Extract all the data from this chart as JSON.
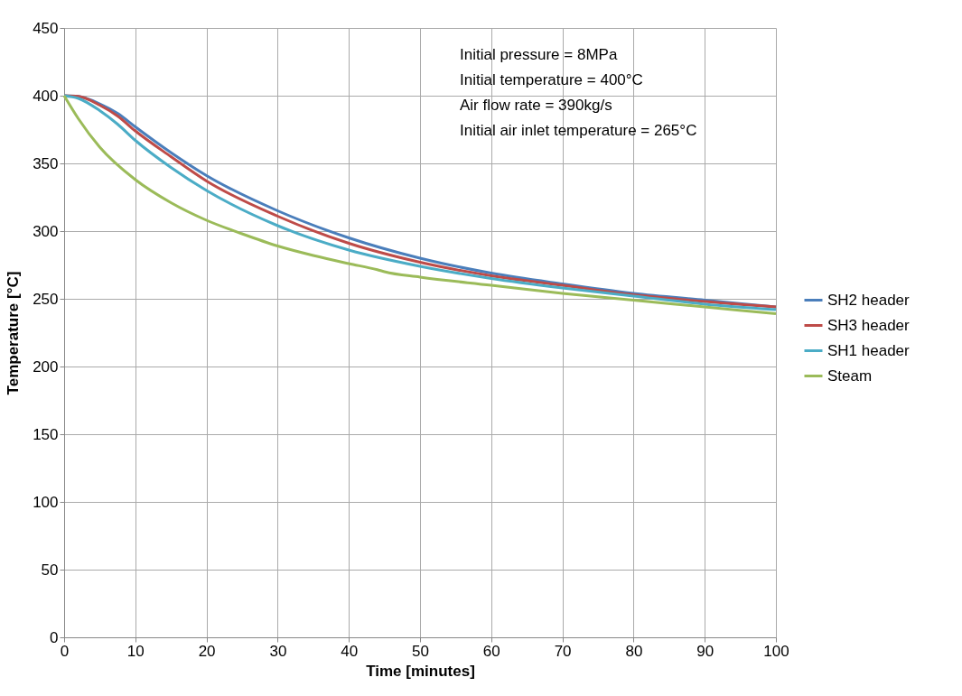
{
  "chart_data": {
    "type": "line",
    "xlabel": "Time [minutes]",
    "ylabel": "Temperature [°C]",
    "annotations": [
      "Initial pressure = 8MPa",
      "Initial temperature = 400°C",
      "Air flow rate = 390kg/s",
      "Initial air inlet temperature = 265°C"
    ],
    "x": [
      0,
      2,
      5,
      7.5,
      10,
      15,
      20,
      30,
      40,
      50,
      60,
      70,
      80,
      90,
      100
    ],
    "series": [
      {
        "name": "SH2 header",
        "color": "#4a7ebb",
        "values": [
          400,
          399.5,
          394,
          387,
          377,
          358,
          341,
          315,
          295,
          280,
          269,
          261,
          254,
          249,
          244
        ]
      },
      {
        "name": "SH3 header",
        "color": "#be4b48",
        "values": [
          400,
          399.5,
          393,
          385,
          374,
          355,
          337,
          311,
          291,
          277,
          267,
          260,
          253,
          248,
          244
        ]
      },
      {
        "name": "SH1 header",
        "color": "#4bacc6",
        "values": [
          400,
          398,
          389,
          379,
          367,
          347,
          330,
          304,
          286,
          274,
          265,
          258,
          252,
          246,
          242
        ]
      },
      {
        "name": "Steam",
        "color": "#9bbb59",
        "x": [
          0,
          2,
          5,
          10,
          15,
          20,
          25,
          30,
          35,
          40,
          44,
          45,
          50,
          60,
          70,
          80,
          90,
          100
        ],
        "values": [
          400,
          383,
          362,
          338,
          321,
          308,
          298,
          289,
          282,
          276,
          271.5,
          270,
          266,
          260,
          254,
          249,
          244,
          239
        ]
      }
    ],
    "xlim": [
      0,
      100
    ],
    "xticks": [
      0,
      10,
      20,
      30,
      40,
      50,
      60,
      70,
      80,
      90,
      100
    ],
    "ylim": [
      0,
      450
    ],
    "yticks": [
      0,
      50,
      100,
      150,
      200,
      250,
      300,
      350,
      400,
      450
    ],
    "grid": true,
    "legend": "right",
    "marker": "none",
    "line_style": "solid"
  }
}
